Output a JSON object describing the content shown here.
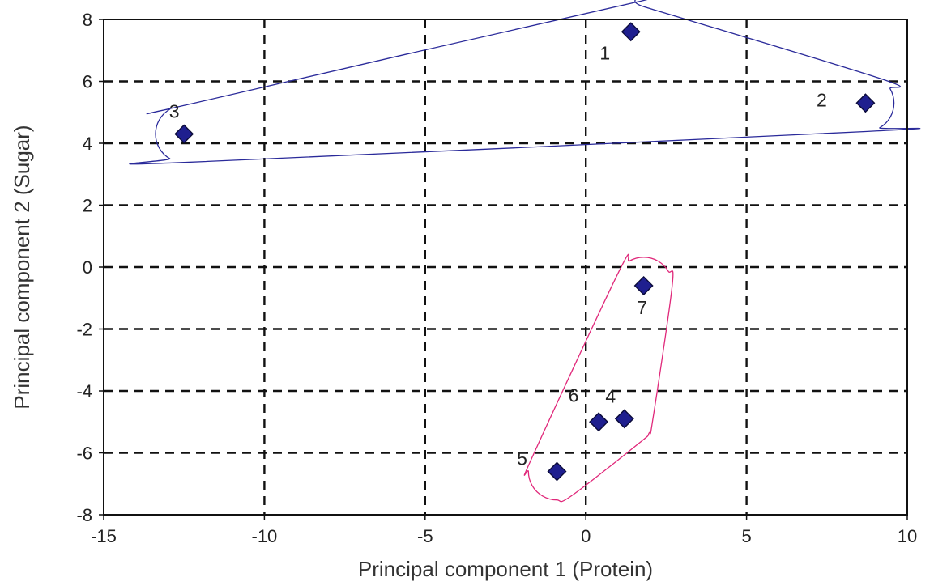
{
  "chart_data": {
    "type": "scatter",
    "title": "",
    "xlabel": "Principal component 1 (Protein)",
    "ylabel": "Principal component 2 (Sugar)",
    "xlim": [
      -15,
      10
    ],
    "ylim": [
      -8,
      8
    ],
    "x_ticks": [
      -15,
      -10,
      -5,
      0,
      5,
      10
    ],
    "y_ticks": [
      -8,
      -6,
      -4,
      -2,
      0,
      2,
      4,
      6,
      8
    ],
    "x_tick_labels": [
      "-15",
      "-10",
      "-5",
      "0",
      "5",
      "10"
    ],
    "y_tick_labels": [
      "-8",
      "-6",
      "-4",
      "-2",
      "0",
      "2",
      "4",
      "6",
      "8"
    ],
    "grid": true,
    "grid_style": "dashed",
    "marker": "diamond",
    "marker_color": "#1f1f8f",
    "points": [
      {
        "label": "1",
        "x": 1.4,
        "y": 7.6
      },
      {
        "label": "2",
        "x": 8.7,
        "y": 5.3
      },
      {
        "label": "3",
        "x": -12.5,
        "y": 4.3
      },
      {
        "label": "4",
        "x": 1.2,
        "y": -4.9
      },
      {
        "label": "5",
        "x": -0.9,
        "y": -6.6
      },
      {
        "label": "6",
        "x": 0.4,
        "y": -5.0
      },
      {
        "label": "7",
        "x": 1.8,
        "y": -0.6
      }
    ],
    "clusters": [
      {
        "members": [
          "1",
          "2",
          "3"
        ],
        "color": "#2a2a9a"
      },
      {
        "members": [
          "4",
          "5",
          "6",
          "7"
        ],
        "color": "#e0287a"
      }
    ]
  }
}
